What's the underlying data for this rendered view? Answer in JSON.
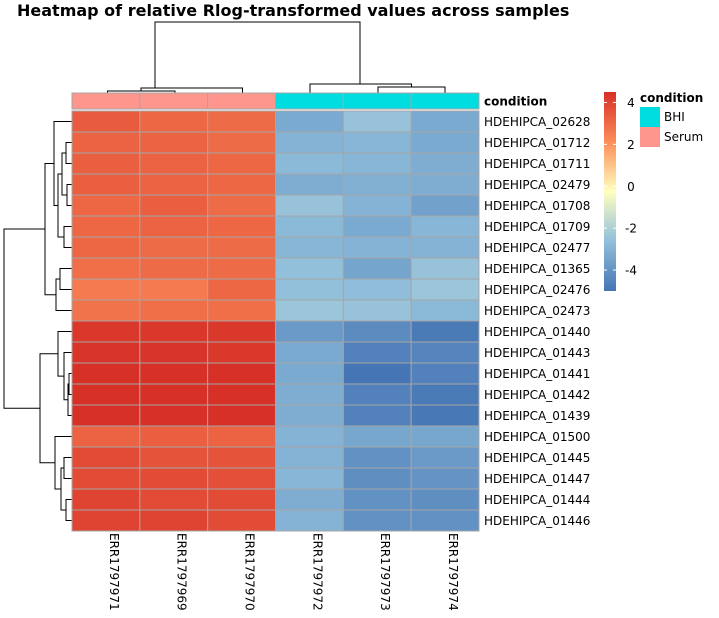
{
  "chart_data": {
    "type": "heatmap",
    "title": "Heatmap of relative Rlog-transformed values across samples",
    "columns": [
      "ERR1797971",
      "ERR1797969",
      "ERR1797970",
      "ERR1797972",
      "ERR1797973",
      "ERR1797974"
    ],
    "rows": [
      "HDEHIPCA_02628",
      "HDEHIPCA_01712",
      "HDEHIPCA_01711",
      "HDEHIPCA_02479",
      "HDEHIPCA_01708",
      "HDEHIPCA_01709",
      "HDEHIPCA_02477",
      "HDEHIPCA_01365",
      "HDEHIPCA_02476",
      "HDEHIPCA_02473",
      "HDEHIPCA_01440",
      "HDEHIPCA_01443",
      "HDEHIPCA_01441",
      "HDEHIPCA_01442",
      "HDEHIPCA_01439",
      "HDEHIPCA_01500",
      "HDEHIPCA_01445",
      "HDEHIPCA_01447",
      "HDEHIPCA_01444",
      "HDEHIPCA_01446"
    ],
    "values": [
      [
        3.4,
        3.1,
        3.0,
        -3.3,
        -2.5,
        -3.3
      ],
      [
        3.2,
        3.2,
        3.0,
        -3.0,
        -2.9,
        -3.3
      ],
      [
        3.3,
        3.2,
        3.1,
        -2.8,
        -2.9,
        -3.2
      ],
      [
        3.3,
        3.2,
        3.1,
        -3.2,
        -3.1,
        -3.2
      ],
      [
        3.1,
        3.3,
        3.0,
        -2.5,
        -3.0,
        -3.6
      ],
      [
        3.1,
        3.2,
        3.1,
        -2.8,
        -3.3,
        -2.9
      ],
      [
        3.1,
        3.0,
        3.0,
        -2.9,
        -3.0,
        -3.0
      ],
      [
        2.9,
        3.0,
        3.0,
        -2.6,
        -3.5,
        -2.5
      ],
      [
        2.6,
        2.6,
        3.1,
        -2.6,
        -2.7,
        -2.4
      ],
      [
        2.8,
        2.9,
        2.9,
        -2.4,
        -2.5,
        -2.8
      ],
      [
        4.3,
        4.3,
        4.3,
        -3.8,
        -4.3,
        -4.8
      ],
      [
        4.4,
        4.4,
        4.3,
        -3.3,
        -4.6,
        -4.5
      ],
      [
        4.5,
        4.5,
        4.5,
        -3.3,
        -5.0,
        -4.6
      ],
      [
        4.5,
        4.5,
        4.5,
        -3.2,
        -4.6,
        -4.8
      ],
      [
        4.5,
        4.5,
        4.5,
        -3.2,
        -4.6,
        -4.9
      ],
      [
        3.2,
        3.3,
        3.2,
        -3.0,
        -3.4,
        -3.4
      ],
      [
        3.8,
        3.6,
        3.6,
        -3.0,
        -4.1,
        -3.8
      ],
      [
        3.8,
        3.8,
        3.7,
        -2.9,
        -4.2,
        -4.0
      ],
      [
        4.0,
        3.8,
        3.8,
        -3.2,
        -4.1,
        -4.2
      ],
      [
        4.0,
        4.0,
        3.8,
        -3.0,
        -4.1,
        -4.1
      ]
    ],
    "annotation": {
      "title": "condition",
      "column_conditions": [
        "Serum",
        "Serum",
        "Serum",
        "BHI",
        "BHI",
        "BHI"
      ],
      "levels": [
        {
          "name": "BHI",
          "color": "#00dde0"
        },
        {
          "name": "Serum",
          "color": "#ff968e"
        }
      ]
    },
    "colorbar": {
      "ticks": [
        4,
        2,
        0,
        -2,
        -4
      ],
      "tick_labels": [
        "4",
        "2",
        "0",
        "-2",
        "-4"
      ],
      "range": [
        -5,
        4.5
      ],
      "colors": [
        "#4575b4",
        "#91bfdb",
        "#ffffbf",
        "#fc8d59",
        "#d73027"
      ]
    },
    "grid": true,
    "cell_border_color": "#a6a6a6"
  }
}
